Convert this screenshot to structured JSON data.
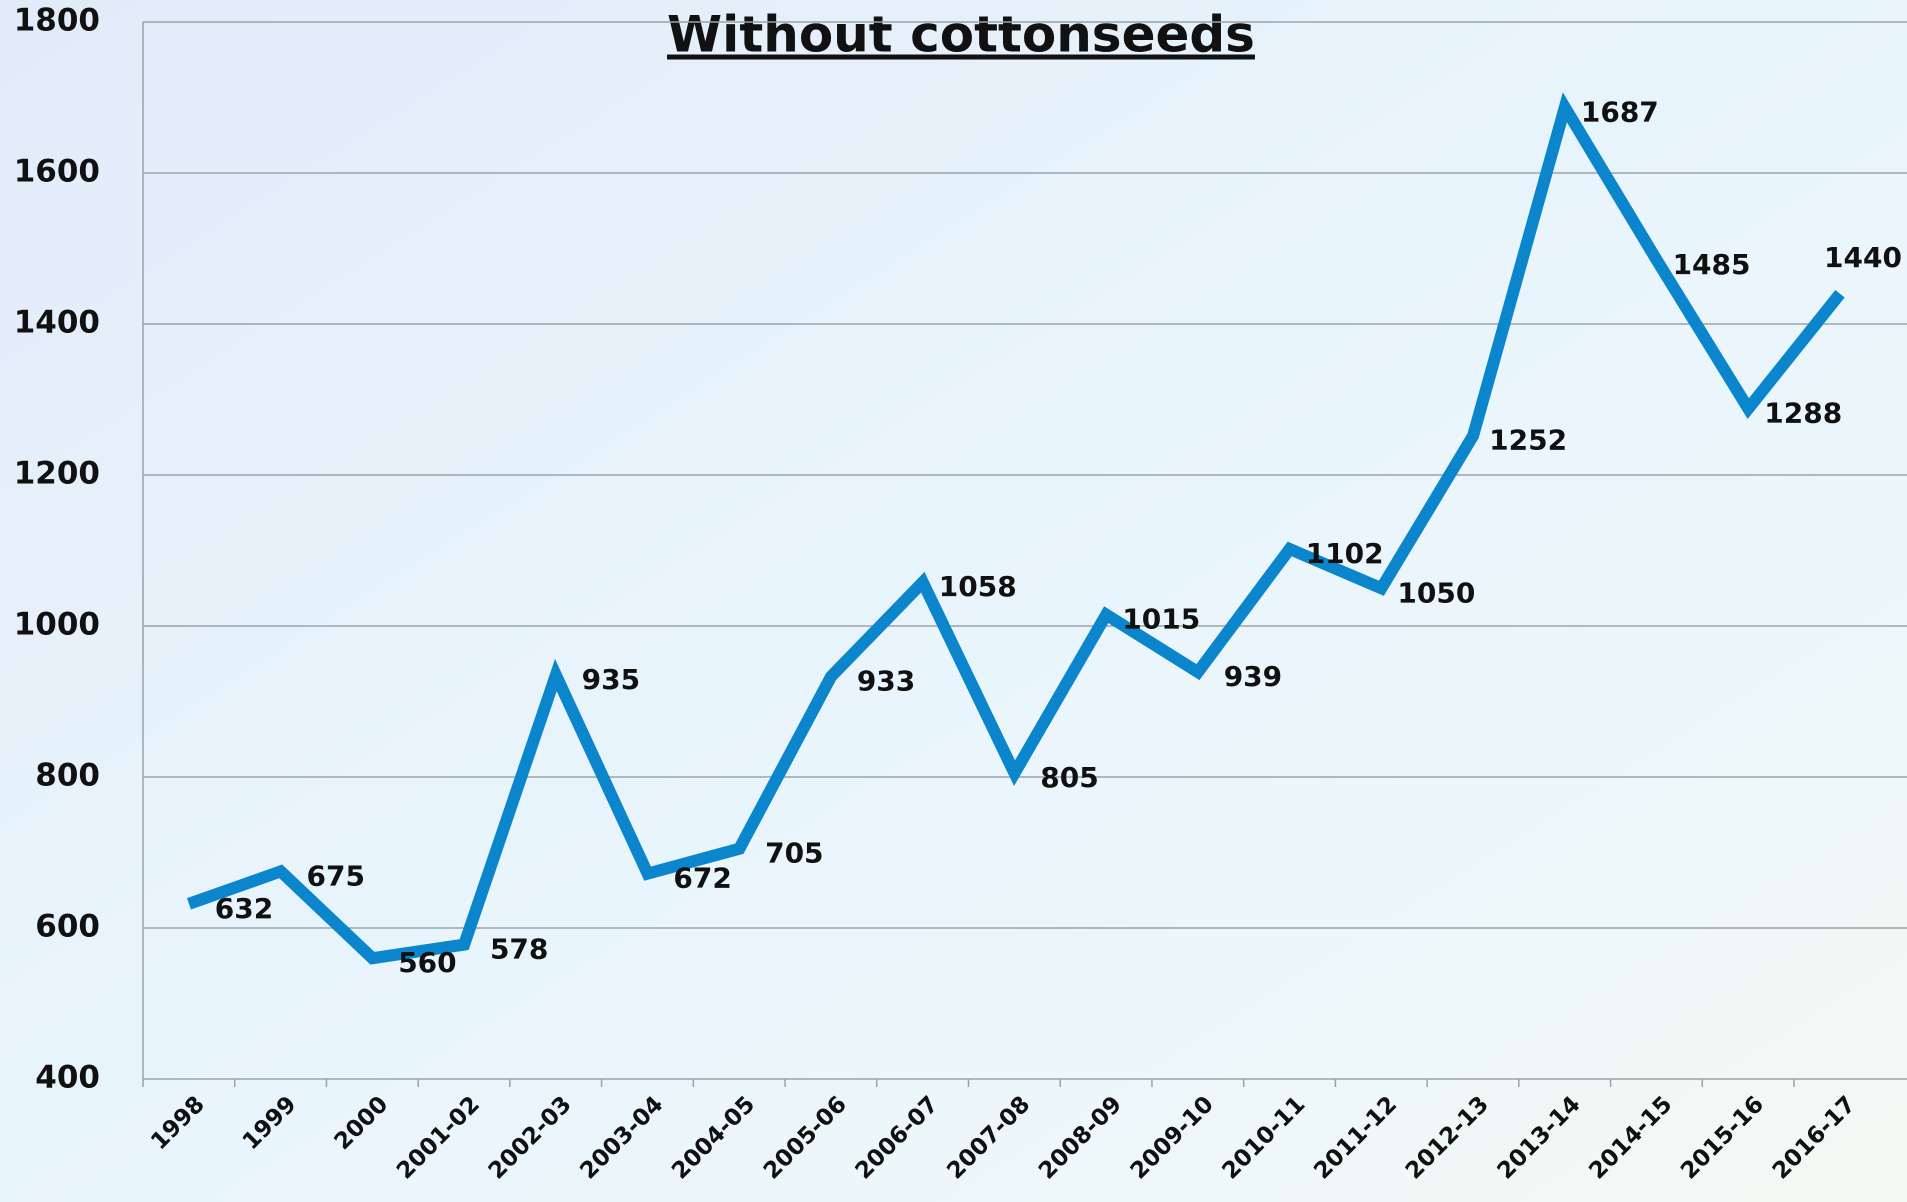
{
  "chart_data": {
    "type": "line",
    "title": "Without cottonseeds",
    "categories": [
      "1998",
      "1999",
      "2000",
      "2001-02",
      "2002-03",
      "2003-04",
      "2004-05",
      "2005-06",
      "2006-07",
      "2007-08",
      "2008-09",
      "2009-10",
      "2010-11",
      "2011-12",
      "2012-13",
      "2013-14",
      "2014-15",
      "2015-16",
      "2016-17"
    ],
    "series": [
      {
        "name": "Without cottonseeds",
        "color": "#0b86cc",
        "values": [
          632,
          675,
          560,
          578,
          935,
          672,
          705,
          933,
          1058,
          805,
          1015,
          939,
          1102,
          1050,
          1252,
          1687,
          1485,
          1288,
          1440
        ]
      }
    ],
    "ylim": [
      400,
      1800
    ],
    "yticks": [
      400,
      600,
      800,
      1000,
      1200,
      1400,
      1600,
      1800
    ],
    "grid": true
  }
}
